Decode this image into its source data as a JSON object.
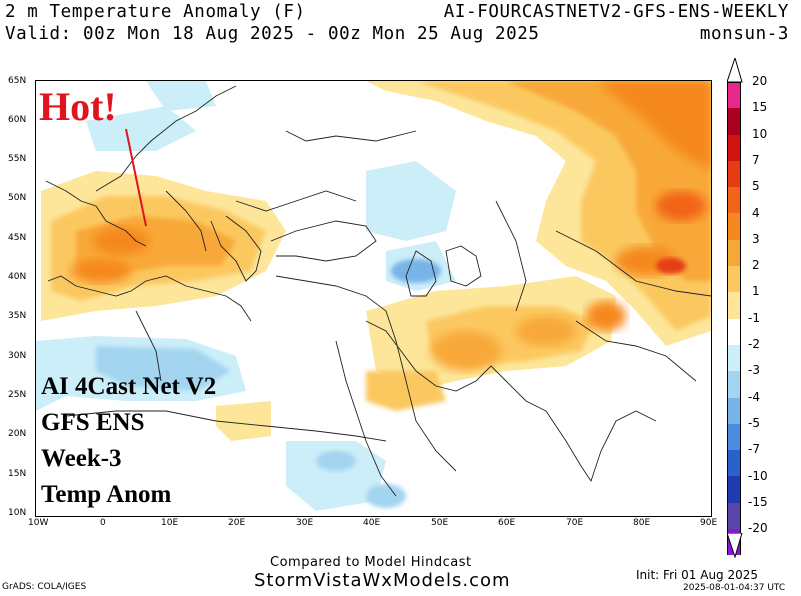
{
  "header": {
    "line1_left": "2 m Temperature Anomaly (F)",
    "line1_right": "AI-FOURCASTNETV2-GFS-ENS-WEEKLY",
    "line2_left": "Valid: 00z Mon 18 Aug 2025 - 00z Mon 25 Aug 2025",
    "line2_right": "monsun-3"
  },
  "annotation": {
    "hot": "Hot!"
  },
  "overlay_lines": [
    "AI 4Cast Net V2",
    "GFS ENS",
    "Week-3",
    "Temp Anom"
  ],
  "axes": {
    "lat_labels": [
      "65N",
      "60N",
      "55N",
      "50N",
      "45N",
      "40N",
      "35N",
      "30N",
      "25N",
      "20N",
      "15N",
      "10N"
    ],
    "lon_labels": [
      "10W",
      "0",
      "10E",
      "20E",
      "30E",
      "40E",
      "50E",
      "60E",
      "70E",
      "80E",
      "90E"
    ]
  },
  "colorbar": {
    "labels": [
      "20",
      "15",
      "10",
      "7",
      "5",
      "4",
      "3",
      "2",
      "1",
      "-1",
      "-2",
      "-3",
      "-4",
      "-5",
      "-7",
      "-10",
      "-15",
      "-20"
    ],
    "colors": [
      "#e8288c",
      "#a8001e",
      "#d01410",
      "#e63c12",
      "#f26418",
      "#f5881e",
      "#f8a838",
      "#fbc860",
      "#fde69a",
      "#ffffff",
      "#cceef8",
      "#a3d4f0",
      "#78b4e8",
      "#4b8ce0",
      "#2a62cc",
      "#1e3cb0",
      "#5a46a8",
      "#8a18d0"
    ]
  },
  "footer": {
    "compared": "Compared to Model Hindcast",
    "site": "StormVistaWxModels.com",
    "grads": "GrADS: COLA/IGES",
    "init": "Init: Fri 01 Aug 2025",
    "timestamp": "2025-08-01-04:37 UTC"
  }
}
